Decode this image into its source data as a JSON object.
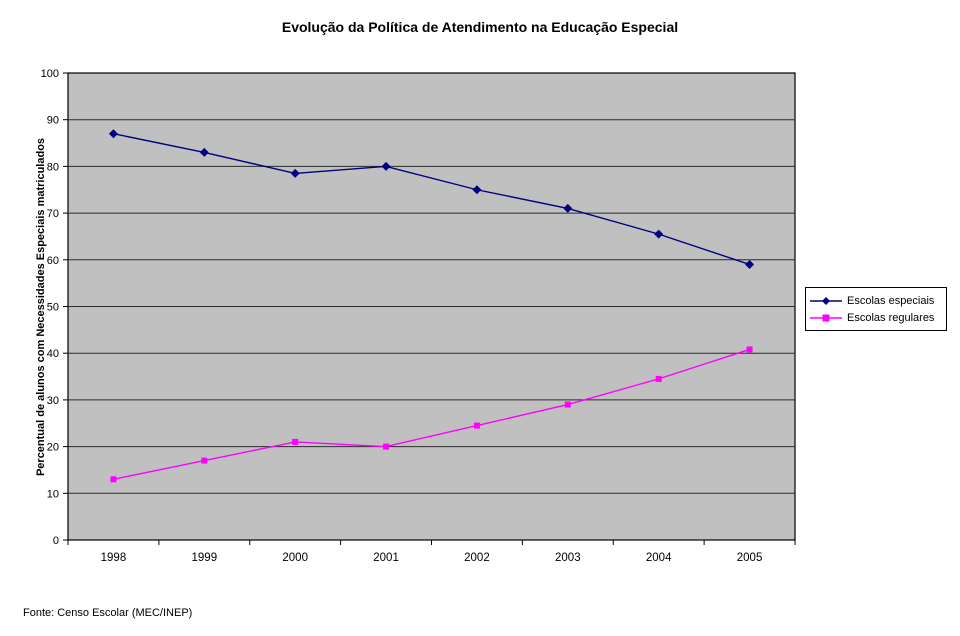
{
  "chart_data": {
    "type": "line",
    "title": "Evolução da Política de Atendimento na Educação Especial",
    "ylabel": "Percentual de alunos com Necessidades Especiais matriculados",
    "xlabel": "",
    "source": "Fonte: Censo Escolar (MEC/INEP)",
    "categories": [
      "1998",
      "1999",
      "2000",
      "2001",
      "2002",
      "2003",
      "2004",
      "2005"
    ],
    "series": [
      {
        "name": "Escolas especiais",
        "color": "#000080",
        "marker": "diamond",
        "values": [
          87,
          83,
          78.5,
          80,
          75,
          71,
          65.5,
          59
        ]
      },
      {
        "name": "Escolas regulares",
        "color": "#FF00FF",
        "marker": "square",
        "values": [
          13,
          17,
          21,
          20,
          24.5,
          29,
          34.5,
          40.8
        ]
      }
    ],
    "ylim": [
      0,
      100
    ],
    "ytick_step": 10,
    "grid": true,
    "plot_bg": "#C0C0C0",
    "grid_color": "#2b2b2b",
    "axis_color": "#000000",
    "legend_position": "right"
  }
}
